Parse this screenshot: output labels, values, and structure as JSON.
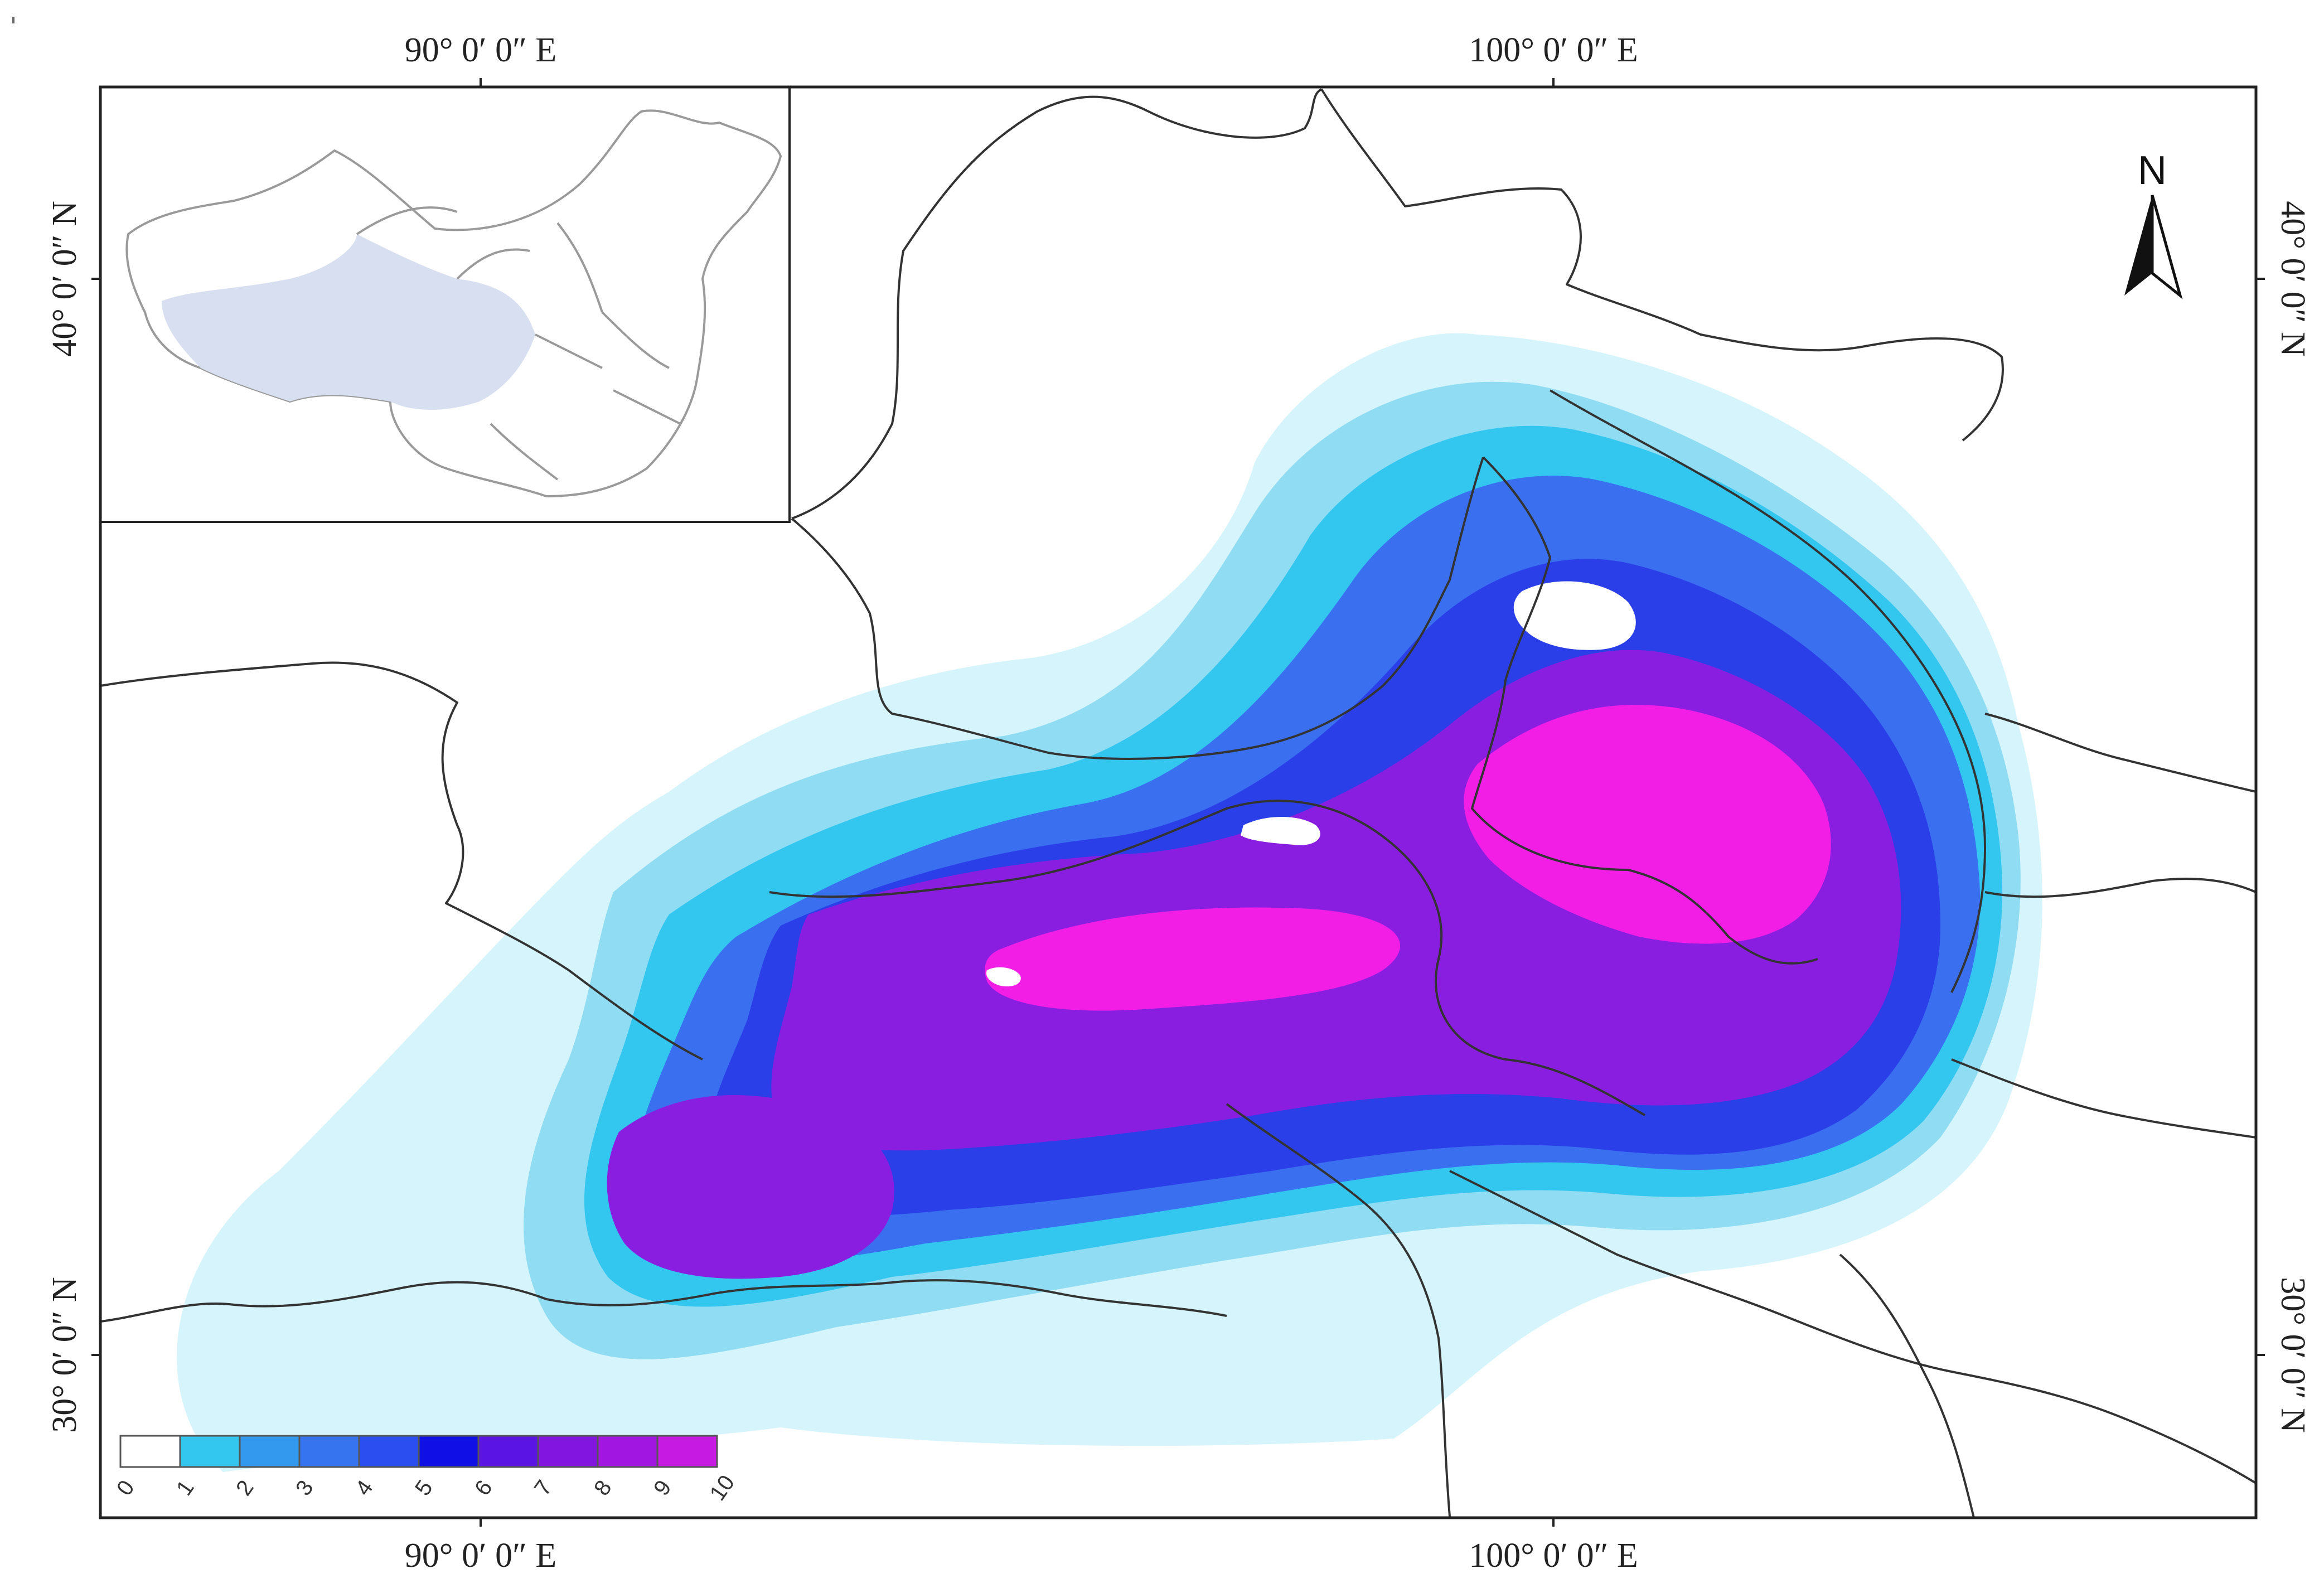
{
  "map": {
    "top_lon_labels": [
      "90°  0′ 0″ E",
      "100°  0′ 0″ E"
    ],
    "bottom_lon_labels": [
      "90°  0′ 0″ E",
      "100°  0′ 0″ E"
    ],
    "left_lat_labels": [
      "40°  0′ 0″ N",
      "30°  0′ 0″ N"
    ],
    "right_lat_labels": [
      "40°  0′ 0″ N",
      "30°  0′ 0″ N"
    ],
    "north_arrow_letter": "N"
  },
  "legend": {
    "classes": [
      "0",
      "1",
      "2",
      "3",
      "4",
      "5",
      "6",
      "7",
      "8",
      "9",
      "10"
    ],
    "colors": [
      "#ffffff",
      "#33c7f0",
      "#3399ef",
      "#3574ee",
      "#2a4ef0",
      "#1010e6",
      "#5a14e4",
      "#8216e0",
      "#a216e2",
      "#c61ae2",
      "#f21ee6"
    ]
  },
  "colors": {
    "very_light": "#d6f4fb",
    "light_cyan": "#8fdcf3",
    "cyan": "#33c7f0",
    "blue": "#3a6ff0",
    "deep_blue": "#2a3fe8",
    "purple": "#8a1ee0",
    "magenta": "#f21ee6",
    "inset_highlight": "#d7dff0"
  }
}
